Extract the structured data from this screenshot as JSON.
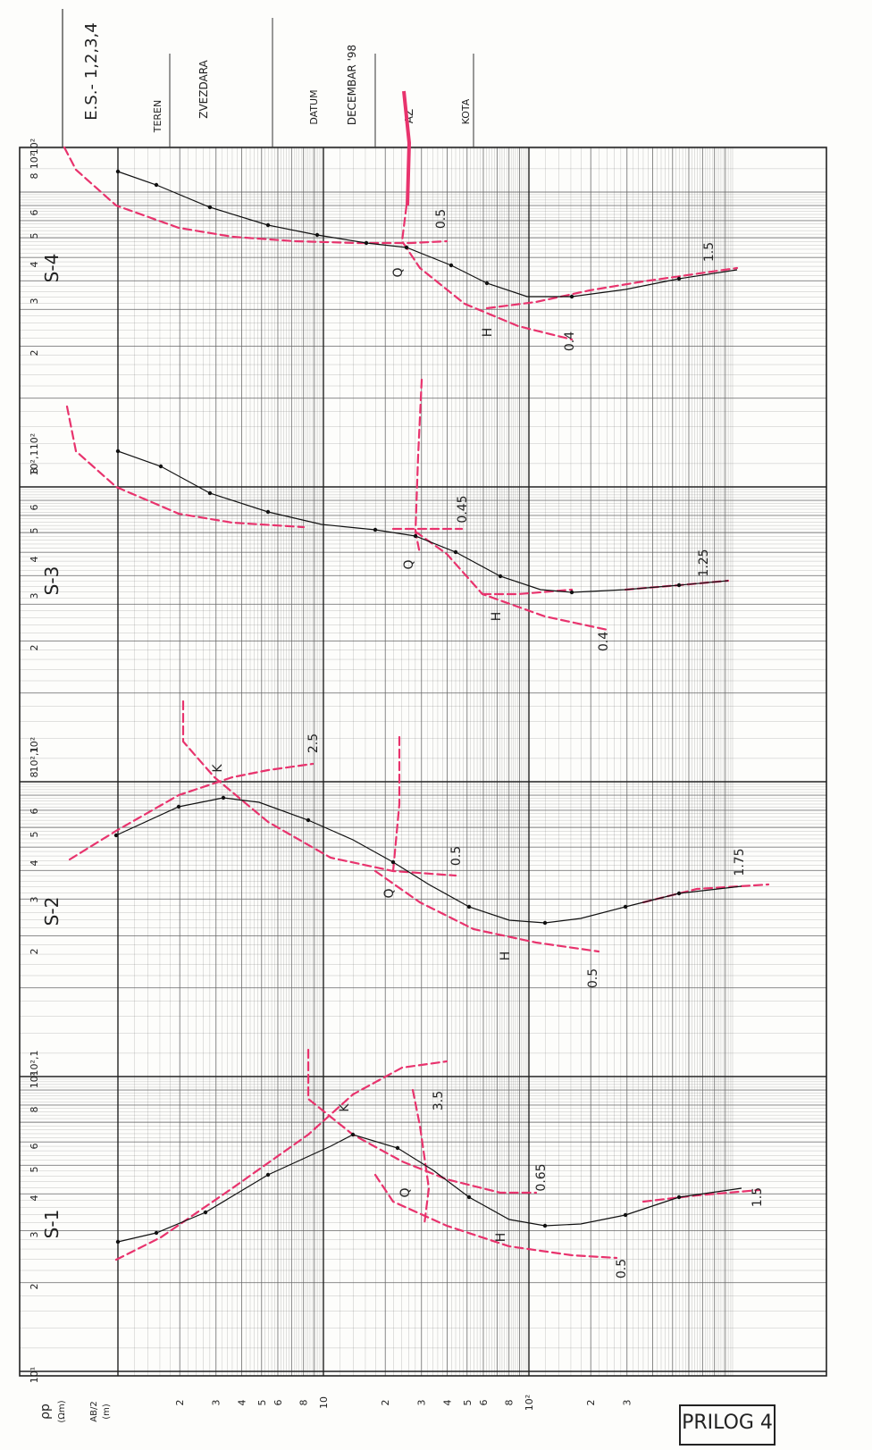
{
  "header": {
    "es": "E.S.- 1,2,3,4",
    "teren_label": "TEREN",
    "teren_value": "ZVEZDARA",
    "datum_label": "DATUM",
    "datum_value": "DECEMBAR '98",
    "az": "AZ",
    "kota_label": "KOTA"
  },
  "axis": {
    "rho_label": "ρp",
    "rho_unit": "(Ωm)",
    "ab_label": "AB/2",
    "ab_unit": "(m)",
    "ab_ticks": [
      "2",
      "3",
      "4",
      "5",
      "6",
      "8",
      "10",
      "2",
      "3",
      "4",
      "5",
      "6",
      "8",
      "10²",
      "2",
      "3"
    ],
    "rho_ticks": [
      "10¹",
      "2",
      "3",
      "4",
      "5",
      "6",
      "8",
      "10²",
      "2",
      "3",
      "4",
      "5",
      "6",
      "8",
      "10²,1"
    ]
  },
  "prilog": "PRILOG 4",
  "colors": {
    "measured": "#111111",
    "model": "#e8336d",
    "grid": "#666666",
    "paper": "#fdfdfb"
  },
  "chart_data": [
    {
      "type": "line",
      "title": "S-1",
      "xscale": "log",
      "yscale": "log",
      "xlabel": "AB/2 (m)",
      "ylabel": "ρp (Ωm)",
      "series": [
        {
          "x": [
            1.5,
            2,
            3,
            5,
            7,
            9,
            10,
            12,
            15,
            20,
            30,
            40,
            60,
            100,
            150
          ],
          "y": [
            23,
            25,
            29,
            37,
            44,
            48,
            50,
            47,
            43,
            35,
            28,
            27,
            28,
            31,
            33
          ]
        }
      ],
      "annotations": [
        "K",
        "Q",
        "H",
        "3.5",
        "0.65",
        "0.5",
        "1.5"
      ]
    },
    {
      "type": "line",
      "title": "S-2",
      "xscale": "log",
      "yscale": "log",
      "xlabel": "AB/2 (m)",
      "ylabel": "ρp (Ωm)",
      "series": [
        {
          "x": [
            1.5,
            2,
            3,
            4,
            5,
            7,
            10,
            15,
            20,
            30,
            40,
            60,
            100,
            150
          ],
          "y": [
            52,
            56,
            65,
            70,
            69,
            63,
            53,
            41,
            33,
            28,
            27,
            29,
            33,
            35
          ]
        }
      ],
      "annotations": [
        "K",
        "2.5",
        "Q",
        "0.5",
        "H",
        "0.5",
        "1.75"
      ]
    },
    {
      "type": "line",
      "title": "S-3",
      "xscale": "log",
      "yscale": "log",
      "xlabel": "AB/2 (m)",
      "ylabel": "ρp (Ωm)",
      "series": [
        {
          "x": [
            1.5,
            2,
            3,
            5,
            7,
            10,
            15,
            20,
            30,
            40,
            60,
            100,
            150
          ],
          "y": [
            100,
            90,
            74,
            62,
            57,
            54,
            52,
            46,
            36,
            32,
            32,
            33,
            34
          ]
        }
      ],
      "annotations": [
        "0.45",
        "Q",
        "H",
        "0.4",
        "1.25"
      ]
    },
    {
      "type": "line",
      "title": "S-4",
      "xscale": "log",
      "yscale": "log",
      "xlabel": "AB/2 (m)",
      "ylabel": "ρp (Ωm)",
      "series": [
        {
          "x": [
            1.5,
            2,
            3,
            4,
            5,
            7,
            10,
            15,
            20,
            30,
            40,
            60,
            100,
            150
          ],
          "y": [
            90,
            85,
            72,
            65,
            60,
            54,
            51,
            48,
            43,
            35,
            33,
            34,
            37,
            40
          ]
        }
      ],
      "annotations": [
        "0.5",
        "Q",
        "H",
        "0.4",
        "1.5"
      ]
    }
  ]
}
